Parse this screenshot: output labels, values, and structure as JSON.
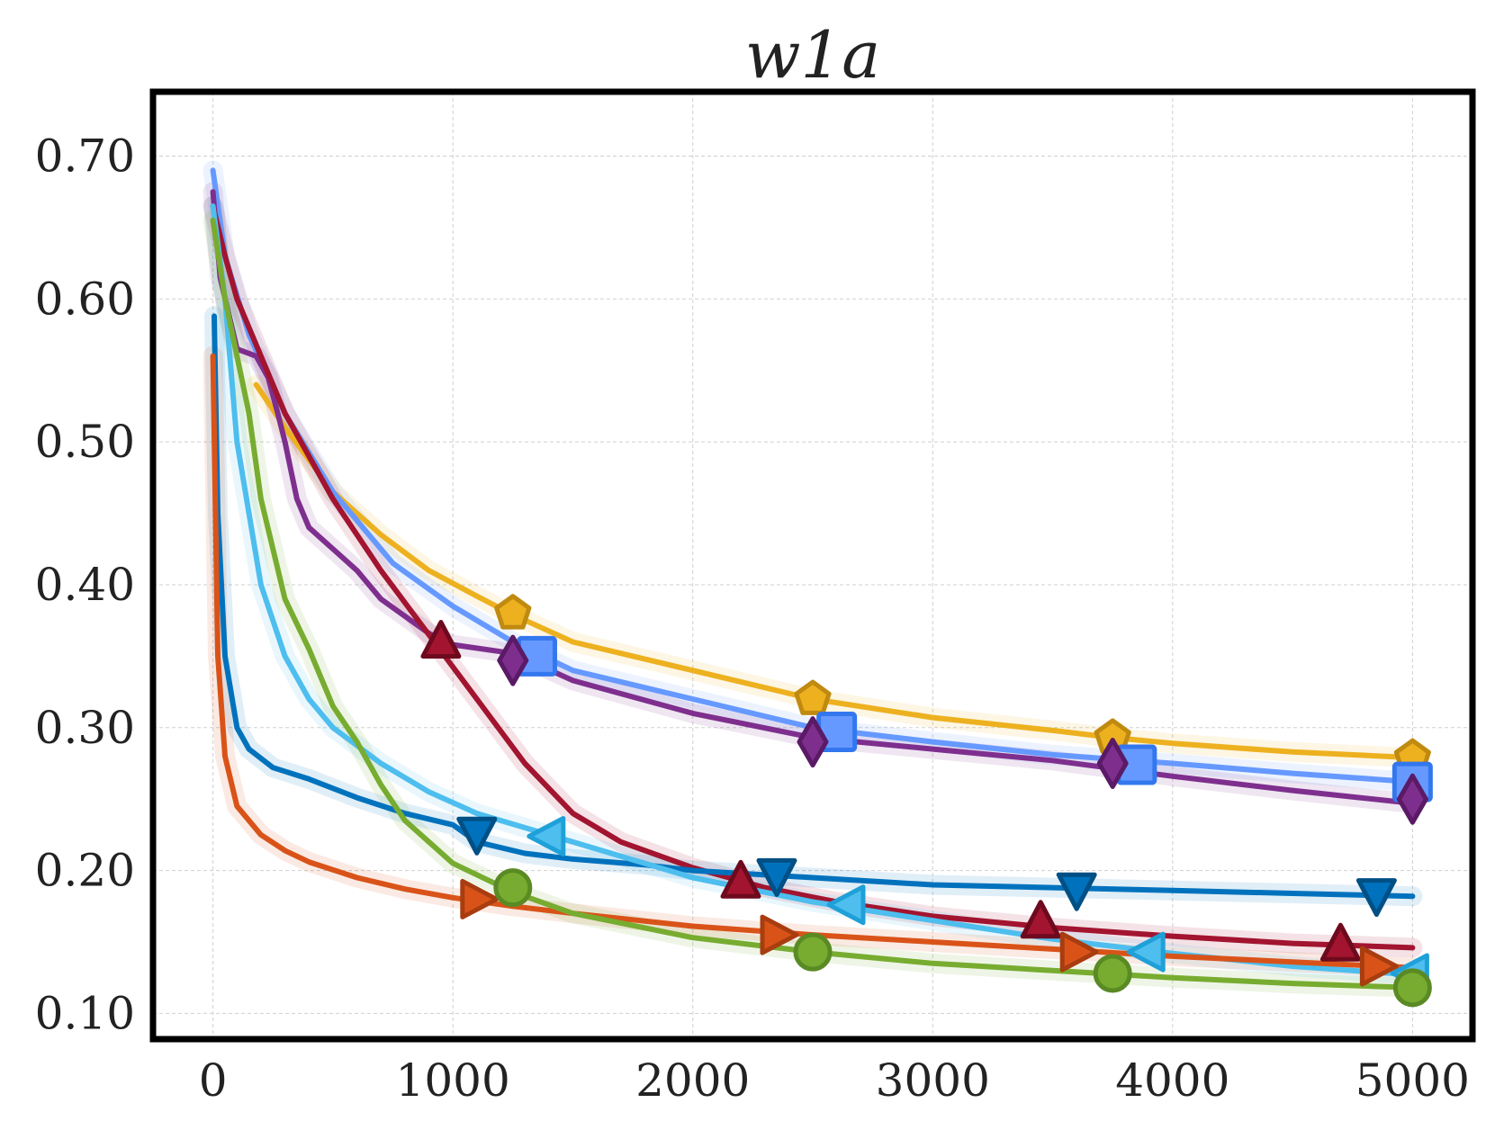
{
  "chart_data": {
    "type": "line",
    "title": "w1a",
    "xlabel": "",
    "ylabel": "",
    "xlim": [
      -250,
      5250
    ],
    "ylim": [
      0.082,
      0.745
    ],
    "x_ticks": [
      0,
      1000,
      2000,
      3000,
      4000,
      5000
    ],
    "x_tick_labels": [
      "0",
      "1000",
      "2000",
      "3000",
      "4000",
      "5000"
    ],
    "y_ticks": [
      0.1,
      0.2,
      0.3,
      0.4,
      0.5,
      0.6,
      0.7
    ],
    "y_tick_labels": [
      "0.10",
      "0.20",
      "0.30",
      "0.40",
      "0.50",
      "0.60",
      "0.70"
    ],
    "grid": true,
    "series": [
      {
        "name": "gold-pentagon",
        "color": "#EDB120",
        "marker_edge": "#C08A10",
        "marker": "pentagon",
        "x": [
          180,
          300,
          500,
          700,
          900,
          1100,
          1250,
          1500,
          2000,
          2500,
          3000,
          3500,
          3750,
          4000,
          4500,
          5000
        ],
        "y": [
          0.54,
          0.51,
          0.465,
          0.435,
          0.41,
          0.392,
          0.379,
          0.36,
          0.34,
          0.32,
          0.307,
          0.298,
          0.293,
          0.289,
          0.283,
          0.279
        ],
        "markers_x": [
          1250,
          2500,
          3750,
          5000
        ],
        "markers_y": [
          0.38,
          0.32,
          0.293,
          0.279
        ]
      },
      {
        "name": "light-blue-square",
        "color": "#6699FF",
        "marker_edge": "#3377EE",
        "marker": "square",
        "x": [
          0,
          50,
          150,
          300,
          500,
          750,
          1000,
          1250,
          1500,
          2000,
          2500,
          3000,
          3500,
          4000,
          4500,
          5000
        ],
        "y": [
          0.69,
          0.63,
          0.575,
          0.52,
          0.465,
          0.415,
          0.385,
          0.36,
          0.34,
          0.32,
          0.3,
          0.29,
          0.281,
          0.275,
          0.268,
          0.262
        ],
        "markers_x": [
          1350,
          2600,
          3850,
          5000
        ],
        "markers_y": [
          0.35,
          0.297,
          0.274,
          0.262
        ]
      },
      {
        "name": "purple-diamond",
        "color": "#7E2F8E",
        "marker_edge": "#5A1A66",
        "marker": "diamond",
        "x": [
          0,
          30,
          100,
          180,
          230,
          270,
          300,
          350,
          400,
          500,
          600,
          700,
          800,
          900,
          1000,
          1250,
          1500,
          2000,
          2500,
          3000,
          3500,
          4000,
          4500,
          5000
        ],
        "y": [
          0.675,
          0.615,
          0.565,
          0.56,
          0.545,
          0.52,
          0.5,
          0.46,
          0.44,
          0.425,
          0.41,
          0.39,
          0.378,
          0.366,
          0.358,
          0.352,
          0.333,
          0.31,
          0.293,
          0.285,
          0.277,
          0.266,
          0.256,
          0.247
        ],
        "markers_x": [
          1250,
          2500,
          3750,
          5000
        ],
        "markers_y": [
          0.347,
          0.29,
          0.275,
          0.25
        ]
      },
      {
        "name": "crimson-triangle-up",
        "color": "#A2142F",
        "marker_edge": "#6E0A1E",
        "marker": "triangle-up",
        "x": [
          0,
          50,
          100,
          200,
          300,
          500,
          700,
          900,
          1100,
          1300,
          1500,
          1700,
          2000,
          2300,
          2600,
          3000,
          3500,
          4000,
          4500,
          5000
        ],
        "y": [
          0.665,
          0.63,
          0.6,
          0.56,
          0.52,
          0.46,
          0.41,
          0.365,
          0.32,
          0.275,
          0.24,
          0.22,
          0.202,
          0.188,
          0.178,
          0.168,
          0.16,
          0.154,
          0.149,
          0.146
        ],
        "markers_x": [
          950,
          2200,
          3450,
          4700
        ],
        "markers_y": [
          0.36,
          0.192,
          0.164,
          0.148
        ]
      },
      {
        "name": "dark-blue-triangle-down",
        "color": "#0072BD",
        "marker_edge": "#004F85",
        "marker": "triangle-down",
        "x": [
          5,
          20,
          50,
          100,
          150,
          250,
          400,
          600,
          800,
          1000,
          1100,
          1300,
          1500,
          1800,
          2000,
          2500,
          3000,
          3500,
          4000,
          4500,
          5000
        ],
        "y": [
          0.588,
          0.45,
          0.35,
          0.3,
          0.285,
          0.272,
          0.264,
          0.251,
          0.24,
          0.232,
          0.22,
          0.212,
          0.208,
          0.204,
          0.2,
          0.195,
          0.19,
          0.188,
          0.186,
          0.184,
          0.182
        ],
        "markers_x": [
          1100,
          2350,
          3600,
          4850
        ],
        "markers_y": [
          0.226,
          0.197,
          0.187,
          0.183
        ]
      },
      {
        "name": "sky-blue-triangle-left",
        "color": "#4DBEEE",
        "marker_edge": "#1FA0D8",
        "marker": "triangle-left",
        "x": [
          0,
          50,
          100,
          200,
          300,
          400,
          500,
          700,
          900,
          1100,
          1400,
          1800,
          2000,
          2500,
          3000,
          3500,
          4000,
          4500,
          5000
        ],
        "y": [
          0.665,
          0.6,
          0.5,
          0.4,
          0.35,
          0.32,
          0.3,
          0.275,
          0.255,
          0.24,
          0.225,
          0.205,
          0.195,
          0.178,
          0.165,
          0.152,
          0.142,
          0.133,
          0.127
        ],
        "markers_x": [
          1400,
          2650,
          3900,
          5000
        ],
        "markers_y": [
          0.224,
          0.176,
          0.143,
          0.128
        ]
      },
      {
        "name": "orange-triangle-right",
        "color": "#D95319",
        "marker_edge": "#A83D10",
        "marker": "triangle-right",
        "x": [
          0,
          20,
          50,
          100,
          200,
          300,
          400,
          600,
          800,
          1000,
          1250,
          1500,
          2000,
          2500,
          3000,
          3500,
          4000,
          4500,
          5000
        ],
        "y": [
          0.56,
          0.35,
          0.28,
          0.245,
          0.225,
          0.214,
          0.206,
          0.195,
          0.187,
          0.181,
          0.175,
          0.17,
          0.161,
          0.155,
          0.15,
          0.145,
          0.14,
          0.136,
          0.132
        ],
        "markers_x": [
          1100,
          2350,
          3600,
          4850
        ],
        "markers_y": [
          0.18,
          0.155,
          0.143,
          0.133
        ]
      },
      {
        "name": "green-circle",
        "color": "#77AC30",
        "marker_edge": "#5A8A24",
        "marker": "circle",
        "x": [
          0,
          50,
          100,
          150,
          200,
          300,
          400,
          500,
          600,
          700,
          800,
          1000,
          1250,
          1500,
          2000,
          2500,
          3000,
          3500,
          4000,
          4500,
          5000
        ],
        "y": [
          0.655,
          0.6,
          0.56,
          0.52,
          0.46,
          0.39,
          0.355,
          0.315,
          0.29,
          0.26,
          0.235,
          0.205,
          0.185,
          0.17,
          0.153,
          0.143,
          0.135,
          0.13,
          0.125,
          0.121,
          0.118
        ],
        "markers_x": [
          1250,
          2500,
          3750,
          5000
        ],
        "markers_y": [
          0.188,
          0.143,
          0.128,
          0.118
        ]
      }
    ]
  }
}
